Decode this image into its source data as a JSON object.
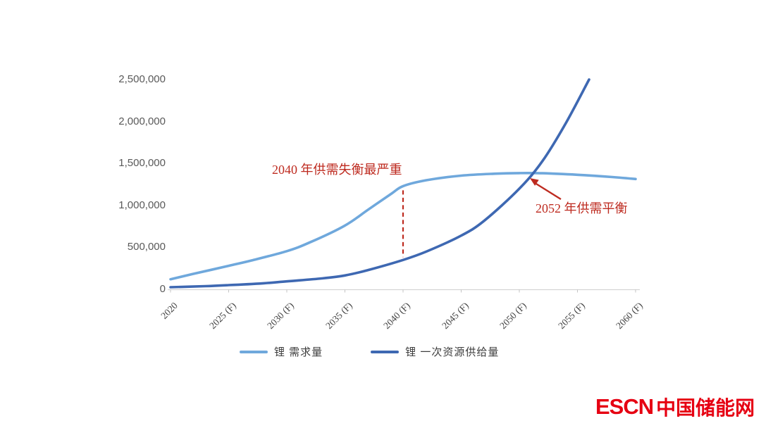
{
  "chart_data": {
    "type": "line",
    "title": "",
    "xlabel": "",
    "ylabel": "",
    "grid": false,
    "legend_position": "bottom",
    "xlim": [
      2020,
      2060
    ],
    "ylim": [
      0,
      2500000
    ],
    "x_tick_years": [
      2020,
      2025,
      2030,
      2035,
      2040,
      2045,
      2050,
      2055,
      2060
    ],
    "x_tick_labels": [
      "2020",
      "2025 (F)",
      "2030 (F)",
      "2035 (F)",
      "2040 (F)",
      "2045 (F)",
      "2050 (F)",
      "2055 (F)",
      "2060 (F)"
    ],
    "y_tick_values": [
      0,
      500000,
      1000000,
      1500000,
      2000000,
      2500000
    ],
    "y_tick_labels": [
      "0",
      "500,000",
      "1,000,000",
      "1,500,000",
      "2,000,000",
      "2,500,000"
    ],
    "series": [
      {
        "name": "锂 需求量",
        "color": "#6FA8DC",
        "points": [
          [
            2020,
            120000
          ],
          [
            2022,
            185000
          ],
          [
            2025,
            280000
          ],
          [
            2027,
            345000
          ],
          [
            2030,
            455000
          ],
          [
            2032,
            560000
          ],
          [
            2035,
            760000
          ],
          [
            2037,
            950000
          ],
          [
            2039,
            1140000
          ],
          [
            2040,
            1230000
          ],
          [
            2042,
            1300000
          ],
          [
            2045,
            1355000
          ],
          [
            2048,
            1378000
          ],
          [
            2050,
            1385000
          ],
          [
            2052,
            1383000
          ],
          [
            2055,
            1365000
          ],
          [
            2058,
            1338000
          ],
          [
            2060,
            1315000
          ]
        ]
      },
      {
        "name": "锂 一次资源供给量",
        "color": "#3E68B2",
        "points": [
          [
            2020,
            25000
          ],
          [
            2023,
            38000
          ],
          [
            2025,
            50000
          ],
          [
            2028,
            72000
          ],
          [
            2030,
            95000
          ],
          [
            2033,
            130000
          ],
          [
            2035,
            165000
          ],
          [
            2037,
            230000
          ],
          [
            2040,
            350000
          ],
          [
            2042,
            450000
          ],
          [
            2045,
            640000
          ],
          [
            2047,
            820000
          ],
          [
            2050,
            1200000
          ],
          [
            2052,
            1530000
          ],
          [
            2054,
            1980000
          ],
          [
            2056,
            2500000
          ]
        ]
      }
    ],
    "gap_marker": {
      "year": 2040,
      "from_series": 0,
      "to_series": 1,
      "color": "#BE2B20",
      "style": "dashed"
    },
    "annotations": [
      {
        "id": "imbalance-2040",
        "text": "2040 年供需失衡最严重",
        "color": "#BE2B20"
      },
      {
        "id": "balance-2052",
        "text": "2052 年供需平衡",
        "color": "#BE2B20",
        "arrow": true
      }
    ],
    "axis_color": "#D4D4D4",
    "tick_color": "#C4C4C4"
  },
  "legend": {
    "items": [
      {
        "label": "锂 需求量",
        "color": "#6FA8DC"
      },
      {
        "label": "锂 一次资源供给量",
        "color": "#3E68B2"
      }
    ]
  },
  "watermark": {
    "latin": "ESCN",
    "chinese": "中国储能网",
    "color": "#E60012"
  }
}
